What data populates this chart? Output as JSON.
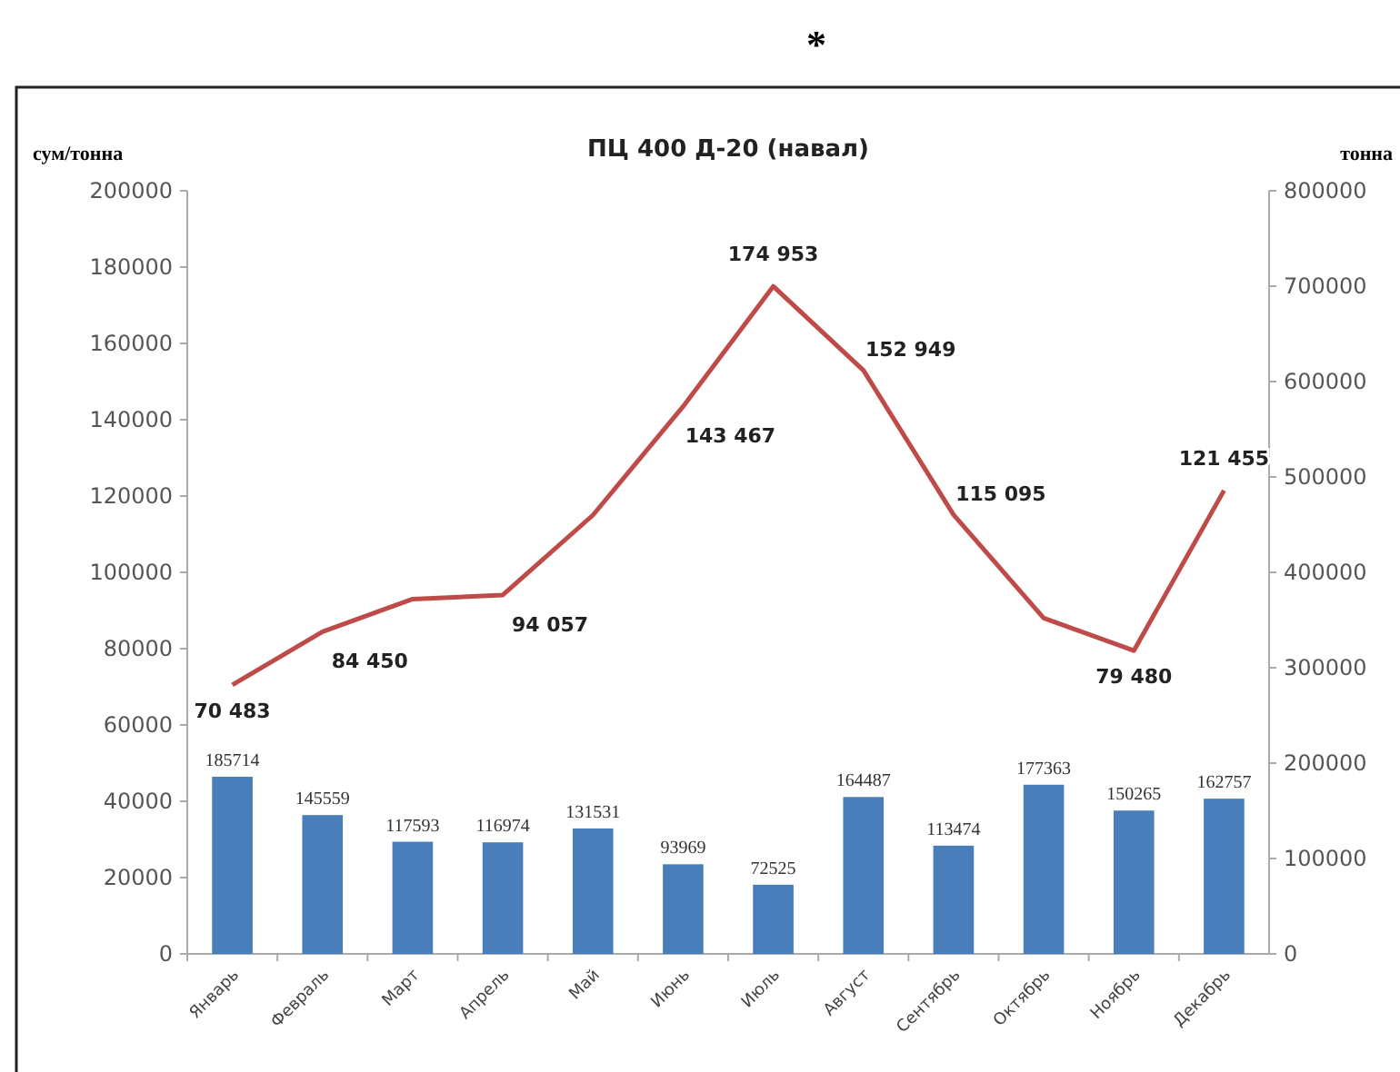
{
  "chart_data": {
    "type": "bar",
    "title": "ПЦ 400 Д-20 (навал)",
    "ylabel": "сум/тонна",
    "y2label": "тонна",
    "annotations": [
      "*"
    ],
    "categories": [
      "Январь",
      "Февраль",
      "Март",
      "Апрель",
      "Май",
      "Июнь",
      "Июль",
      "Август",
      "Сентябрь",
      "Октябрь",
      "Ноябрь",
      "Декабрь"
    ],
    "series": [
      {
        "axis": "y2",
        "color": "#4a7ebb",
        "values": [
          185714,
          145559,
          117593,
          116974,
          131531,
          93969,
          72525,
          164487,
          113474,
          177363,
          150265,
          162757
        ],
        "data_labels": true
      },
      {
        "type": "line",
        "axis": "y",
        "color": "#be4b48",
        "values": [
          70483,
          84450,
          93000,
          94057,
          115000,
          143467,
          174953,
          152949,
          115095,
          88000,
          79480,
          121455
        ],
        "value_labels": [
          "70 483",
          "84 450",
          null,
          "94 057",
          null,
          "143 467",
          "174 953",
          "152 949",
          "115 095",
          null,
          "79 480",
          "121 455"
        ]
      }
    ],
    "ylim": [
      0,
      200000
    ],
    "yticks": [
      0,
      20000,
      40000,
      60000,
      80000,
      100000,
      120000,
      140000,
      160000,
      180000,
      200000
    ],
    "y2lim": [
      0,
      800000
    ],
    "y2ticks": [
      0,
      100000,
      200000,
      300000,
      400000,
      500000,
      600000,
      700000,
      800000
    ],
    "grid": false,
    "marker": "none",
    "line_style": "solid"
  }
}
